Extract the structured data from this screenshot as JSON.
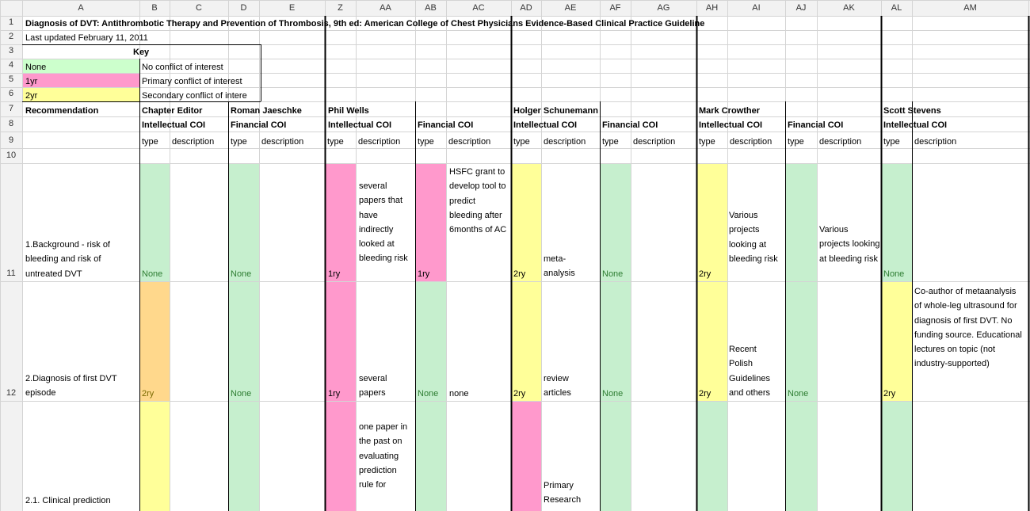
{
  "col_headers": [
    "A",
    "B",
    "C",
    "D",
    "E",
    "Z",
    "AA",
    "AB",
    "AC",
    "AD",
    "AE",
    "AF",
    "AG",
    "AH",
    "AI",
    "AJ",
    "AK",
    "AL",
    "AM"
  ],
  "row_numbers": [
    "1",
    "2",
    "3",
    "4",
    "5",
    "6",
    "7",
    "8",
    "9",
    "10",
    "11",
    "12"
  ],
  "title": "Diagnosis of DVT: Antithrombotic Therapy and Prevention of Thrombosis, 9th ed: American College of Chest Physicians Evidence-Based Clinical Practice Guideline",
  "last_updated": "Last updated February 11, 2011",
  "key": {
    "title": "Key",
    "rows": [
      {
        "code": "None",
        "meaning": "No conflict of interest",
        "color": "#ccffcc"
      },
      {
        "code": "1yr",
        "meaning": "Primary conflict of interest",
        "color": "#ff99cc"
      },
      {
        "code": "2yr",
        "meaning": "Secondary conflict of intere",
        "color": "#ffff99"
      }
    ]
  },
  "headers": {
    "recommendation": "Recommendation",
    "people": [
      "Chapter Editor",
      "Roman Jaeschke",
      "Phil Wells",
      "Holger Schunemann",
      "Mark Crowther",
      "Scott Stevens"
    ],
    "intellectual": "Intellectual COI",
    "financial": "Financial COI",
    "type": "type",
    "description": "description"
  },
  "rows": [
    {
      "recommendation": "1.Background - risk of bleeding and risk of untreated DVT",
      "b_type": "None",
      "d_type": "None",
      "z_type": "1ry",
      "aa_desc": "several papers that have indirectly looked at bleeding risk",
      "ab_type": "1ry",
      "ac_desc": "HSFC grant to develop tool to predict bleeding after 6months of AC",
      "ad_type": "2ry",
      "ae_desc": "meta-analysis",
      "af_type": "None",
      "ah_type": "2ry",
      "ai_desc": "Various projects looking at bleeding risk",
      "ak_desc": "Various projects looking at bleeding risk",
      "al_type": "None"
    },
    {
      "recommendation": "2.Diagnosis of first DVT episode",
      "b_type": "2ry",
      "d_type": "None",
      "z_type": "1ry",
      "aa_desc": "several papers",
      "ab_type": "None",
      "ac_desc": "none",
      "ad_type": "2ry",
      "ae_desc": "review articles",
      "af_type": "None",
      "ah_type": "2ry",
      "ai_desc": "Recent Polish Guidelines and others",
      "aj_type": "None",
      "al_type": "2ry",
      "am_desc": "Co-author of metaanalysis of whole-leg ultrasound for diagnosis of first DVT. No funding source. Educational lectures on topic (not industry-supported)"
    },
    {
      "recommendation": "2.1. Clinical prediction",
      "aa_desc": "one paper in the past on evaluating prediction rule for",
      "ae_desc": "Primary Research"
    }
  ],
  "colors": {
    "green": "#c6efce",
    "pink": "#ff99cc",
    "yellow": "#ffff99",
    "orange": "#ffd88c",
    "header_bg": "#f2f2f2",
    "grid": "#d4d4d4"
  }
}
